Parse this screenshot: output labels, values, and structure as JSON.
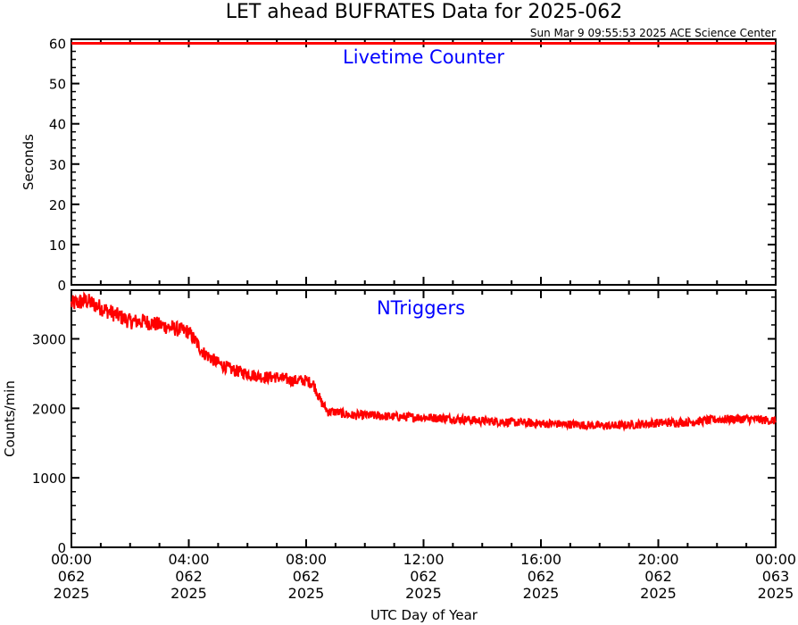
{
  "title": "LET ahead BUFRATES Data for 2025-062",
  "timestamp": "Sun Mar  9 09:55:53 2025 ACE Science Center",
  "xlabel": "UTC Day of Year",
  "x_ticks": [
    {
      "l1": "00:00",
      "l2": "062",
      "l3": "2025"
    },
    {
      "l1": "04:00",
      "l2": "062",
      "l3": "2025"
    },
    {
      "l1": "08:00",
      "l2": "062",
      "l3": "2025"
    },
    {
      "l1": "12:00",
      "l2": "062",
      "l3": "2025"
    },
    {
      "l1": "16:00",
      "l2": "062",
      "l3": "2025"
    },
    {
      "l1": "20:00",
      "l2": "062",
      "l3": "2025"
    },
    {
      "l1": "00:00",
      "l2": "063",
      "l3": "2025"
    }
  ],
  "colors": {
    "series": "#ff0000",
    "panel_label": "#0000ff",
    "axes": "#000000"
  },
  "chart_data": [
    {
      "type": "line",
      "panel_label": "Livetime Counter",
      "ylabel": "Seconds",
      "ylim": [
        0,
        61
      ],
      "yticks": [
        0,
        10,
        20,
        30,
        40,
        50,
        60
      ],
      "xlim_hours": [
        0,
        24
      ],
      "series": [
        {
          "x": [
            0,
            24
          ],
          "y": [
            60,
            60
          ]
        }
      ]
    },
    {
      "type": "line",
      "panel_label": "NTriggers",
      "ylabel": "Counts/min",
      "ylim": [
        0,
        3700
      ],
      "yticks": [
        0,
        1000,
        2000,
        3000
      ],
      "xlim_hours": [
        0,
        24
      ],
      "series": [
        {
          "x": [
            0,
            0.5,
            1,
            1.5,
            2,
            2.5,
            3,
            3.5,
            4,
            4.25,
            4.5,
            5,
            5.5,
            6,
            6.5,
            7,
            7.5,
            8,
            8.25,
            8.5,
            8.75,
            9,
            9.5,
            10,
            11,
            12,
            13,
            14,
            15,
            16,
            17,
            18,
            18.5,
            19,
            20,
            21,
            22,
            23,
            24
          ],
          "y": [
            3500,
            3550,
            3450,
            3350,
            3250,
            3250,
            3200,
            3150,
            3100,
            2950,
            2800,
            2650,
            2550,
            2500,
            2450,
            2450,
            2400,
            2400,
            2350,
            2100,
            1950,
            1950,
            1900,
            1900,
            1880,
            1870,
            1850,
            1820,
            1800,
            1780,
            1770,
            1750,
            1750,
            1760,
            1790,
            1800,
            1840,
            1850,
            1820
          ]
        }
      ]
    }
  ]
}
